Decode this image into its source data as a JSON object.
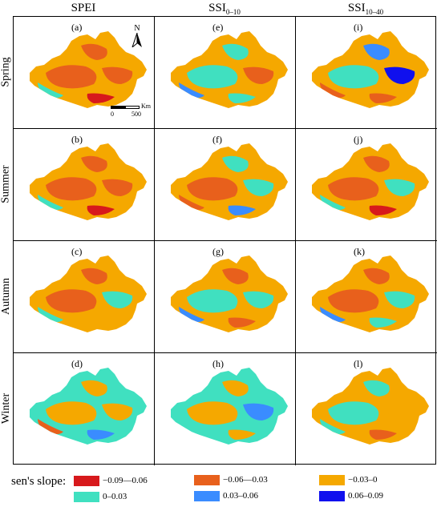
{
  "columns": [
    {
      "main": "SPEI",
      "sub": ""
    },
    {
      "main": "SSI",
      "sub": "0–10"
    },
    {
      "main": "SSI",
      "sub": "10–40"
    }
  ],
  "rows": [
    "Spring",
    "Summer",
    "Autumn",
    "Winter"
  ],
  "panels": [
    "(a)",
    "(e)",
    "(i)",
    "(b)",
    "(f)",
    "(j)",
    "(c)",
    "(g)",
    "(k)",
    "(d)",
    "(h)",
    "(l)"
  ],
  "north_arrow": "N",
  "scale_bar": {
    "unit": "Km",
    "start": "0",
    "end": "500"
  },
  "legend": {
    "title": "sen's slope:",
    "items": [
      {
        "label": "−0.09—0.06",
        "color": "#d7191c"
      },
      {
        "label": "−0.06—0.03",
        "color": "#e8601c"
      },
      {
        "label": "−0.03–0",
        "color": "#f5a800"
      },
      {
        "label": "0–0.03",
        "color": "#40e0c0"
      },
      {
        "label": "0.03–0.06",
        "color": "#3a8cff"
      },
      {
        "label": "0.06–0.09",
        "color": "#1010ee"
      }
    ]
  },
  "map_mix": [
    {
      "base": "#f5a800",
      "patches": [
        "#e8601c",
        "#e8601c",
        "#e8601c",
        "#40e0c0",
        "#d7191c"
      ]
    },
    {
      "base": "#f5a800",
      "patches": [
        "#40e0c0",
        "#40e0c0",
        "#e8601c",
        "#3a8cff",
        "#40e0c0"
      ]
    },
    {
      "base": "#f5a800",
      "patches": [
        "#40e0c0",
        "#3a8cff",
        "#1010ee",
        "#e8601c",
        "#e8601c"
      ]
    },
    {
      "base": "#f5a800",
      "patches": [
        "#e8601c",
        "#e8601c",
        "#e8601c",
        "#40e0c0",
        "#d7191c"
      ]
    },
    {
      "base": "#f5a800",
      "patches": [
        "#e8601c",
        "#40e0c0",
        "#40e0c0",
        "#e8601c",
        "#3a8cff"
      ]
    },
    {
      "base": "#f5a800",
      "patches": [
        "#e8601c",
        "#e8601c",
        "#40e0c0",
        "#40e0c0",
        "#d7191c"
      ]
    },
    {
      "base": "#f5a800",
      "patches": [
        "#e8601c",
        "#e8601c",
        "#40e0c0",
        "#40e0c0",
        "#f5a800"
      ]
    },
    {
      "base": "#f5a800",
      "patches": [
        "#40e0c0",
        "#e8601c",
        "#40e0c0",
        "#3a8cff",
        "#e8601c"
      ]
    },
    {
      "base": "#f5a800",
      "patches": [
        "#e8601c",
        "#e8601c",
        "#40e0c0",
        "#3a8cff",
        "#40e0c0"
      ]
    },
    {
      "base": "#40e0c0",
      "patches": [
        "#f5a800",
        "#f5a800",
        "#f5a800",
        "#e8601c",
        "#3a8cff"
      ]
    },
    {
      "base": "#40e0c0",
      "patches": [
        "#f5a800",
        "#f5a800",
        "#3a8cff",
        "#40e0c0",
        "#f5a800"
      ]
    },
    {
      "base": "#f5a800",
      "patches": [
        "#40e0c0",
        "#40e0c0",
        "#f5a800",
        "#40e0c0",
        "#e8601c"
      ]
    }
  ]
}
